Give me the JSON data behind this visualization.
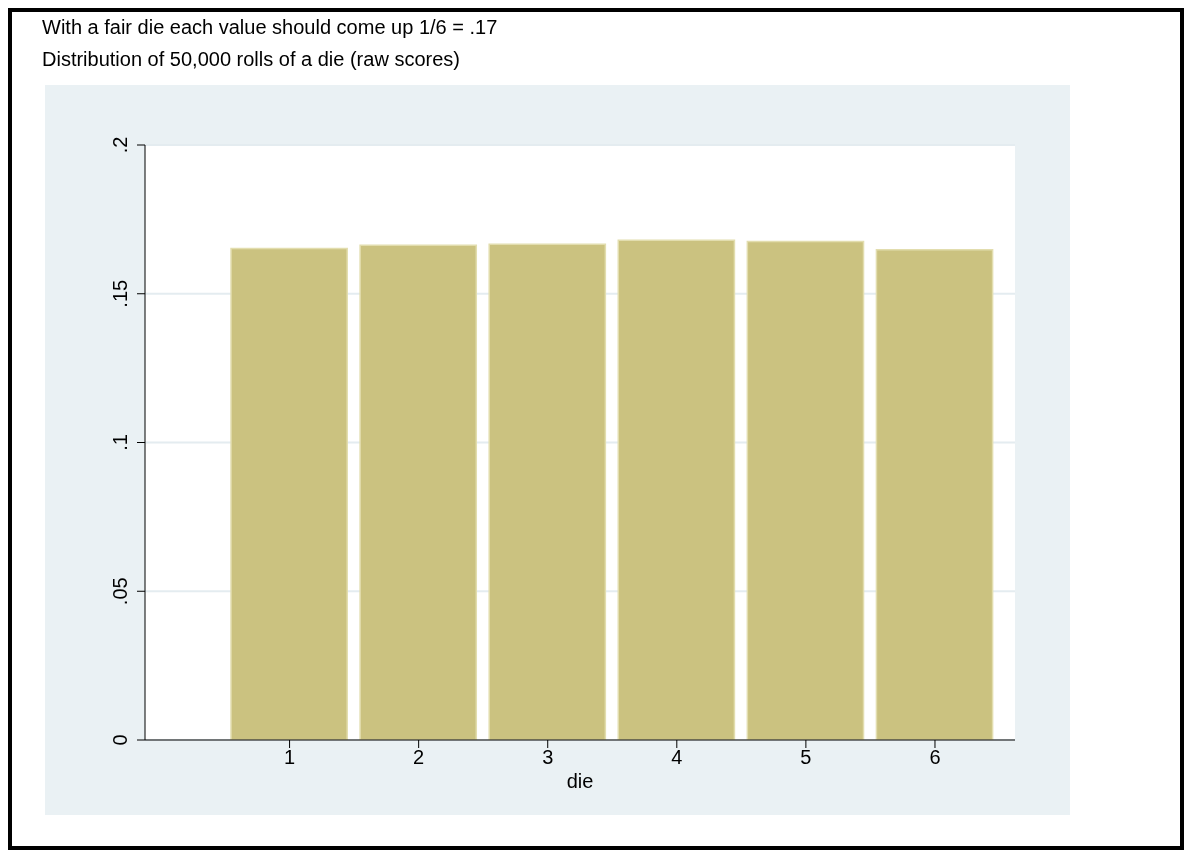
{
  "chart_data": {
    "type": "histogram",
    "title": "With a fair die each value should come up 1/6 = .17",
    "subtitle": "Distribution of 50,000 rolls of a die (raw scores)",
    "xlabel": "die",
    "bins": [
      0.5,
      1.5,
      2.5,
      3.5,
      4.5,
      5.5,
      6.5
    ],
    "values": [
      0.1652,
      0.1663,
      0.1666,
      0.168,
      0.1676,
      0.1648
    ],
    "color": "#cbc280",
    "xlim": [
      -0.12,
      6.62
    ],
    "xticks": [
      1,
      2,
      3,
      4,
      5,
      6
    ],
    "ylim": [
      0,
      0.2
    ],
    "yticks": [
      {
        "value": 0,
        "label": "0"
      },
      {
        "value": 0.05,
        "label": ".05"
      },
      {
        "value": 0.1,
        "label": ".1"
      },
      {
        "value": 0.15,
        "label": ".15"
      },
      {
        "value": 0.2,
        "label": ".2"
      }
    ],
    "grid": "y"
  }
}
